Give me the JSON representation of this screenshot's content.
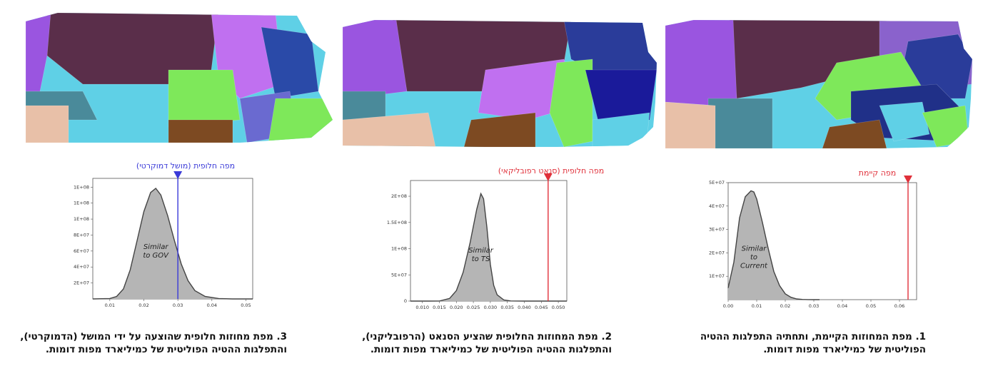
{
  "panels": [
    {
      "id": "current",
      "marker_label": "מפה קיימת",
      "marker_color": "#e0303a",
      "caption_line1": "1. מפת המחוזות הקיימת, ותחתיה התפלגות ההטיה",
      "caption_line2": "הפוליטית של כמיליארד מפות דומות.",
      "map_palette": [
        "#5a2e4a",
        "#9a55e0",
        "#5fd0e6",
        "#8a62cc",
        "#2a3c9a",
        "#7ee85a",
        "#7d4a22",
        "#4a8a9a",
        "#e8c0a8",
        "#203088"
      ]
    },
    {
      "id": "ts",
      "marker_label": "מפה חלופית (סנאט רפובליקאי)",
      "marker_color": "#e0303a",
      "caption_line1": "2. מפת המחוזות החלופית שהציע הסנאט (הרפובליקני),",
      "caption_line2": "והתפלגות ההטיה הפוליטית של כמיליארד מפות דומות.",
      "map_palette": [
        "#5a2e4a",
        "#9a55e0",
        "#5fd0e6",
        "#7ee85a",
        "#2a3c9a",
        "#7d4a22",
        "#4a8a9a",
        "#e8c0a8",
        "#c070f0",
        "#1a1a9a"
      ]
    },
    {
      "id": "gov",
      "marker_label": "מפה חלופית (מושל דמוקרטי)",
      "marker_color": "#3a3ad8",
      "caption_line1": "3. מפת מחוזות חלופית שהוצעה על ידי המושל (הדמוקרטי),",
      "caption_line2": "והתפלגות ההטיה הפוליטית של כמיליארד מפות דומות.",
      "map_palette": [
        "#5a2e4a",
        "#9a55e0",
        "#5fd0e6",
        "#7ee85a",
        "#2a4aa8",
        "#7d4a22",
        "#4a8a9a",
        "#e8c0a8",
        "#c070f0",
        "#6a6ad0"
      ]
    }
  ],
  "chart_data": [
    {
      "type": "area",
      "x_ticks": [
        "0.00",
        "0.01",
        "0.02",
        "0.03",
        "0.04",
        "0.05",
        "0.06"
      ],
      "y_ticks": [
        "1E+07",
        "2E+07",
        "3E+07",
        "4E+07",
        "5E+07"
      ],
      "xlim": [
        0.0,
        0.066
      ],
      "ylim": [
        0,
        50000000
      ],
      "inner_label": [
        "Similar",
        "to",
        "Current"
      ],
      "marker_x": 0.063,
      "curve": {
        "x": [
          0.0,
          0.002,
          0.004,
          0.006,
          0.008,
          0.009,
          0.01,
          0.012,
          0.014,
          0.016,
          0.018,
          0.02,
          0.022,
          0.024,
          0.026,
          0.028,
          0.03,
          0.032
        ],
        "y": [
          5000000,
          16000000,
          35000000,
          44000000,
          46500000,
          46000000,
          43000000,
          33000000,
          22000000,
          12000000,
          6000000,
          2500000,
          1000000,
          300000,
          100000,
          20000,
          0,
          0
        ]
      },
      "fill_color": "#b5b5b5",
      "line_color": "#444444"
    },
    {
      "type": "area",
      "x_ticks": [
        "0.010",
        "0.015",
        "0.020",
        "0.025",
        "0.030",
        "0.035",
        "0.040",
        "0.045",
        "0.050"
      ],
      "y_ticks": [
        "0",
        "5E+07",
        "1E+08",
        "1.5E+08",
        "2E+08"
      ],
      "xlim": [
        0.0065,
        0.0525
      ],
      "ylim": [
        0,
        230000000
      ],
      "inner_label": [
        "Similar",
        "to TS"
      ],
      "marker_x": 0.047,
      "curve": {
        "x": [
          0.0065,
          0.012,
          0.015,
          0.018,
          0.02,
          0.022,
          0.024,
          0.026,
          0.0272,
          0.028,
          0.029,
          0.03,
          0.031,
          0.032,
          0.034,
          0.036,
          0.04,
          0.0525
        ],
        "y": [
          0,
          0,
          200000,
          5000000,
          20000000,
          55000000,
          110000000,
          175000000,
          205000000,
          195000000,
          140000000,
          70000000,
          30000000,
          12000000,
          2000000,
          300000,
          0,
          0
        ]
      },
      "fill_color": "#b5b5b5",
      "line_color": "#444444"
    },
    {
      "type": "area",
      "x_ticks": [
        "0.01",
        "0.02",
        "0.03",
        "0.04",
        "0.05"
      ],
      "y_ticks": [
        "2E+07",
        "4E+07",
        "6E+07",
        "8E+07",
        "1E+08",
        "1E+08",
        "1E+08"
      ],
      "xlim": [
        0.005,
        0.052
      ],
      "ylim": [
        0,
        145000000
      ],
      "inner_label": [
        "Similar",
        "to GOV"
      ],
      "marker_x": 0.03,
      "curve": {
        "x": [
          0.005,
          0.01,
          0.012,
          0.014,
          0.016,
          0.018,
          0.02,
          0.022,
          0.0235,
          0.025,
          0.027,
          0.029,
          0.031,
          0.033,
          0.035,
          0.038,
          0.042,
          0.046,
          0.052
        ],
        "y": [
          0,
          500000,
          3000000,
          12000000,
          35000000,
          70000000,
          105000000,
          128000000,
          133000000,
          125000000,
          100000000,
          70000000,
          42000000,
          22000000,
          10000000,
          3000000,
          500000,
          0,
          0
        ]
      },
      "fill_color": "#b5b5b5",
      "line_color": "#444444"
    }
  ]
}
